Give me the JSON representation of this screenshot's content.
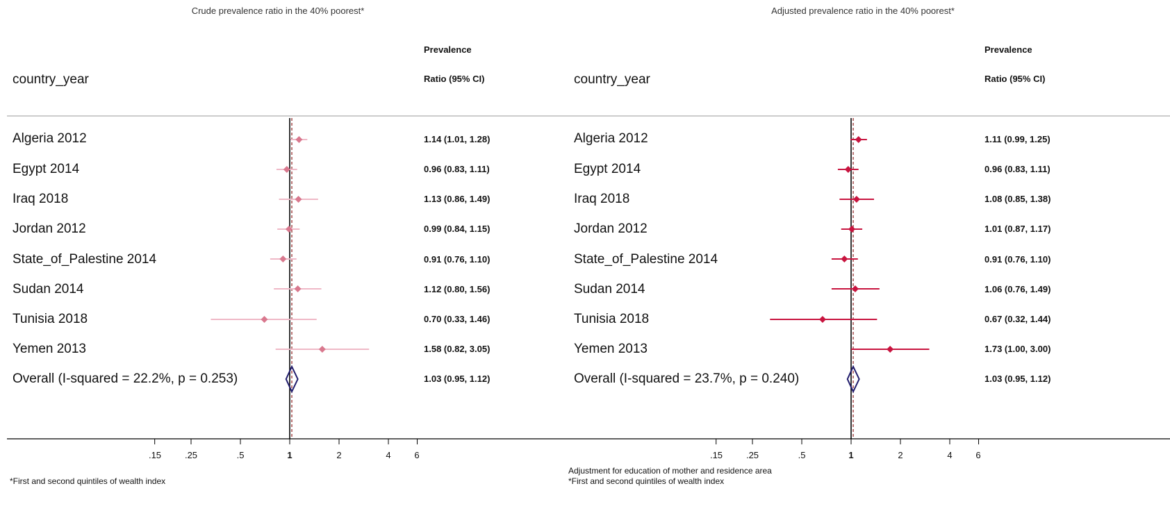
{
  "colors": {
    "crude": "#d9788e",
    "crude_ci": "#efb8c6",
    "adjusted": "#c8143f",
    "adjusted_ci": "#c8143f",
    "overall": "#1f1a6b",
    "line": "#000000",
    "dash": "#8b1a1a"
  },
  "chart_data": [
    {
      "type": "forest",
      "title": "Crude prevalence ratio in the 40% poorest*",
      "column_header": "country_year",
      "estimate_header": [
        "Prevalence",
        "Ratio (95% CI)"
      ],
      "x_scale": "log",
      "x_ticks": [
        ".15",
        ".25",
        ".5",
        "1",
        "2",
        "4",
        "6"
      ],
      "reference_line": 1,
      "overall_line": 1.03,
      "rows": [
        {
          "label": "Algeria 2012",
          "est": 1.14,
          "lo": 1.01,
          "hi": 1.28,
          "text": "1.14 (1.01, 1.28)"
        },
        {
          "label": "Egypt 2014",
          "est": 0.96,
          "lo": 0.83,
          "hi": 1.11,
          "text": "0.96 (0.83, 1.11)"
        },
        {
          "label": "Iraq 2018",
          "est": 1.13,
          "lo": 0.86,
          "hi": 1.49,
          "text": "1.13 (0.86, 1.49)"
        },
        {
          "label": "Jordan 2012",
          "est": 0.99,
          "lo": 0.84,
          "hi": 1.15,
          "text": "0.99 (0.84, 1.15)"
        },
        {
          "label": "State_of_Palestine 2014",
          "est": 0.91,
          "lo": 0.76,
          "hi": 1.1,
          "text": "0.91 (0.76, 1.10)"
        },
        {
          "label": "Sudan 2014",
          "est": 1.12,
          "lo": 0.8,
          "hi": 1.56,
          "text": "1.12 (0.80, 1.56)"
        },
        {
          "label": "Tunisia 2018",
          "est": 0.7,
          "lo": 0.33,
          "hi": 1.46,
          "text": "0.70 (0.33, 1.46)"
        },
        {
          "label": "Yemen 2013",
          "est": 1.58,
          "lo": 0.82,
          "hi": 3.05,
          "text": "1.58 (0.82, 3.05)"
        }
      ],
      "overall": {
        "label": "Overall  (I-squared = 22.2%, p = 0.253)",
        "est": 1.03,
        "lo": 0.95,
        "hi": 1.12,
        "text": "1.03 (0.95, 1.12)"
      },
      "notes": [
        "*First and second quintiles of wealth index"
      ]
    },
    {
      "type": "forest",
      "title": "Adjusted prevalence ratio in the 40% poorest*",
      "column_header": "country_year",
      "estimate_header": [
        "Prevalence",
        "Ratio (95% CI)"
      ],
      "x_scale": "log",
      "x_ticks": [
        ".15",
        ".25",
        ".5",
        "1",
        "2",
        "4",
        "6"
      ],
      "reference_line": 1,
      "overall_line": 1.03,
      "rows": [
        {
          "label": "Algeria 2012",
          "est": 1.11,
          "lo": 0.99,
          "hi": 1.25,
          "text": "1.11 (0.99, 1.25)"
        },
        {
          "label": "Egypt 2014",
          "est": 0.96,
          "lo": 0.83,
          "hi": 1.11,
          "text": "0.96 (0.83, 1.11)"
        },
        {
          "label": "Iraq 2018",
          "est": 1.08,
          "lo": 0.85,
          "hi": 1.38,
          "text": "1.08 (0.85, 1.38)"
        },
        {
          "label": "Jordan 2012",
          "est": 1.01,
          "lo": 0.87,
          "hi": 1.17,
          "text": "1.01 (0.87, 1.17)"
        },
        {
          "label": "State_of_Palestine 2014",
          "est": 0.91,
          "lo": 0.76,
          "hi": 1.1,
          "text": "0.91 (0.76, 1.10)"
        },
        {
          "label": "Sudan 2014",
          "est": 1.06,
          "lo": 0.76,
          "hi": 1.49,
          "text": "1.06 (0.76, 1.49)"
        },
        {
          "label": "Tunisia 2018",
          "est": 0.67,
          "lo": 0.32,
          "hi": 1.44,
          "text": "0.67 (0.32, 1.44)"
        },
        {
          "label": "Yemen 2013",
          "est": 1.73,
          "lo": 1.0,
          "hi": 3.0,
          "text": "1.73 (1.00, 3.00)"
        }
      ],
      "overall": {
        "label": "Overall  (I-squared = 23.7%, p = 0.240)",
        "est": 1.03,
        "lo": 0.95,
        "hi": 1.12,
        "text": "1.03 (0.95, 1.12)"
      },
      "notes": [
        "Adjustment for education of mother and residence area",
        "*First and second quintiles of wealth index"
      ]
    }
  ]
}
